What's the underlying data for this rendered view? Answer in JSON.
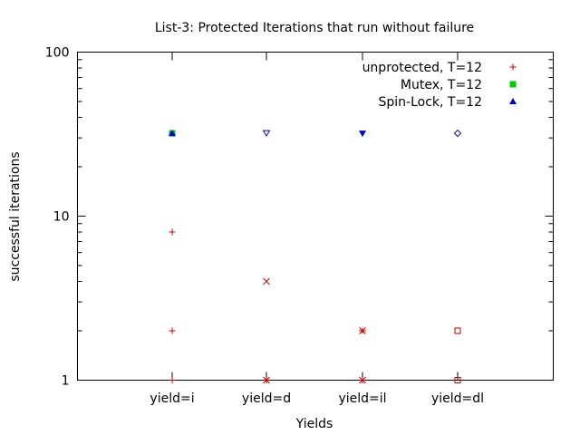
{
  "chart_data": {
    "type": "scatter",
    "title": "List-3: Protected Iterations that run without failure",
    "xlabel": "Yields",
    "ylabel": "successful iterations",
    "y_scale": "log",
    "ylim": [
      1,
      100
    ],
    "y_ticks": [
      1,
      10,
      100
    ],
    "y_tick_labels": [
      "1",
      "10",
      "100"
    ],
    "categories": [
      "yield=i",
      "yield=d",
      "yield=il",
      "yield=dl"
    ],
    "legend_position": "top-right",
    "grid": false,
    "series": [
      {
        "name": "unprotected, T=12",
        "color": "#cc0000",
        "points": [
          {
            "x": "yield=i",
            "y": 8,
            "marker": "plus"
          },
          {
            "x": "yield=i",
            "y": 2,
            "marker": "plus"
          },
          {
            "x": "yield=i",
            "y": 1,
            "marker": "plus"
          },
          {
            "x": "yield=d",
            "y": 4,
            "marker": "cross"
          },
          {
            "x": "yield=d",
            "y": 1,
            "marker": "cross"
          },
          {
            "x": "yield=d",
            "y": 1,
            "marker": "plus"
          },
          {
            "x": "yield=il",
            "y": 2,
            "marker": "star"
          },
          {
            "x": "yield=il",
            "y": 1,
            "marker": "star"
          },
          {
            "x": "yield=dl",
            "y": 2,
            "marker": "square-open"
          },
          {
            "x": "yield=dl",
            "y": 1,
            "marker": "square-open"
          }
        ]
      },
      {
        "name": "Mutex, T=12",
        "color": "#00cc00",
        "points": [
          {
            "x": "yield=i",
            "y": 32,
            "marker": "square-filled"
          }
        ]
      },
      {
        "name": "Spin-Lock, T=12",
        "color": "#0000cc",
        "points": [
          {
            "x": "yield=i",
            "y": 32,
            "marker": "triangle-filled"
          },
          {
            "x": "yield=d",
            "y": 32,
            "marker": "triangle-down-open"
          },
          {
            "x": "yield=il",
            "y": 32,
            "marker": "triangle-down-filled"
          },
          {
            "x": "yield=dl",
            "y": 32,
            "marker": "diamond-open"
          }
        ]
      }
    ]
  }
}
